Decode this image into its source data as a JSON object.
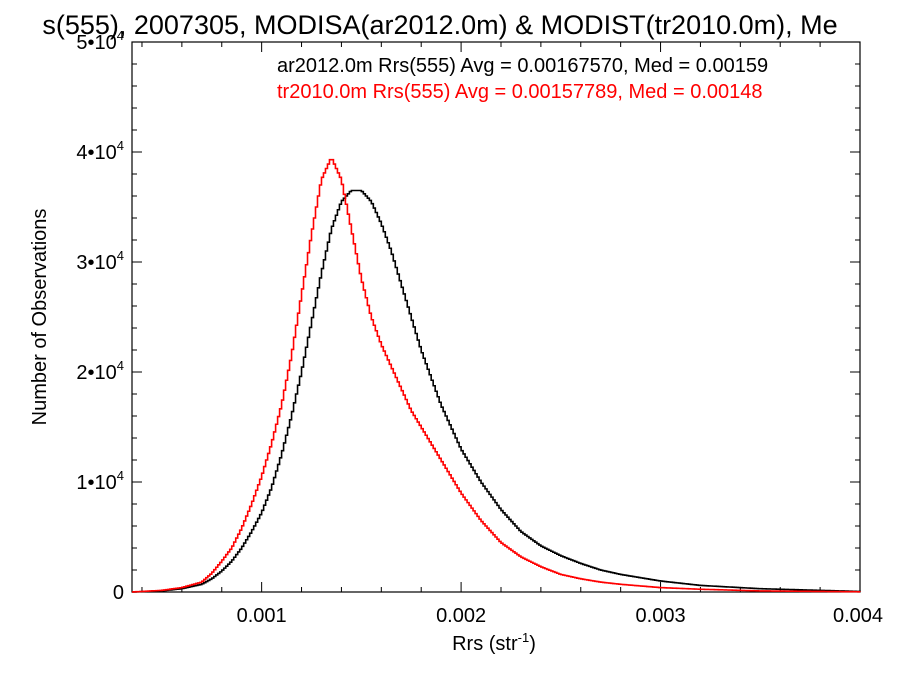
{
  "chart_data": {
    "type": "line",
    "title": "s(555), 2007305, MODISA(ar2012.0m) & MODIST(tr2010.0m), Me",
    "xlabel": "Rrs (str",
    "xlabel_sup": "-1",
    "xlabel_close": ")",
    "ylabel": "Number of Observations",
    "xlim": [
      0.00035,
      0.004
    ],
    "ylim": [
      0,
      50000
    ],
    "x_ticks": [
      {
        "value": 0.001,
        "label": "0.001"
      },
      {
        "value": 0.002,
        "label": "0.002"
      },
      {
        "value": 0.003,
        "label": "0.003"
      },
      {
        "value": 0.004,
        "label": "0.004"
      }
    ],
    "y_ticks": [
      {
        "value": 0,
        "base": "0",
        "exp": ""
      },
      {
        "value": 10000,
        "base": "1•10",
        "exp": "4"
      },
      {
        "value": 20000,
        "base": "2•10",
        "exp": "4"
      },
      {
        "value": 30000,
        "base": "3•10",
        "exp": "4"
      },
      {
        "value": 40000,
        "base": "4•10",
        "exp": "4"
      },
      {
        "value": 50000,
        "base": "5•10",
        "exp": "4"
      }
    ],
    "grid": false,
    "legend_position": "top-right",
    "series": [
      {
        "name": "ar2012.0m Rrs(555) Avg = 0.00167570, Med = 0.00159",
        "color": "#000000",
        "x": [
          0.00035,
          0.0005,
          0.0006,
          0.0007,
          0.00075,
          0.0008,
          0.00085,
          0.0009,
          0.00095,
          0.001,
          0.00105,
          0.0011,
          0.00115,
          0.0012,
          0.00125,
          0.0013,
          0.00135,
          0.0014,
          0.00145,
          0.0015,
          0.00155,
          0.0016,
          0.00165,
          0.0017,
          0.00175,
          0.0018,
          0.0019,
          0.002,
          0.0021,
          0.0022,
          0.0023,
          0.0024,
          0.0025,
          0.0026,
          0.0027,
          0.0028,
          0.003,
          0.0032,
          0.0035,
          0.0038,
          0.004
        ],
        "y": [
          0,
          100,
          300,
          700,
          1200,
          1900,
          2800,
          4000,
          5500,
          7200,
          9500,
          12500,
          16000,
          20000,
          24500,
          29000,
          33000,
          35500,
          36500,
          36500,
          35500,
          33500,
          31000,
          28000,
          25000,
          22000,
          17000,
          13000,
          10000,
          7500,
          5500,
          4200,
          3300,
          2600,
          2000,
          1600,
          1000,
          600,
          300,
          150,
          50
        ]
      },
      {
        "name": "tr2010.0m Rrs(555) Avg = 0.00157789, Med = 0.00148",
        "color": "#ff0000",
        "x": [
          0.00035,
          0.0005,
          0.0006,
          0.0007,
          0.00075,
          0.0008,
          0.00085,
          0.0009,
          0.00095,
          0.001,
          0.00105,
          0.0011,
          0.00115,
          0.0012,
          0.00125,
          0.0013,
          0.00135,
          0.0014,
          0.00145,
          0.0015,
          0.00155,
          0.0016,
          0.00165,
          0.0017,
          0.00175,
          0.0018,
          0.0019,
          0.002,
          0.0021,
          0.0022,
          0.0023,
          0.0024,
          0.0025,
          0.0026,
          0.0027,
          0.0028,
          0.003,
          0.0032,
          0.0035,
          0.0038,
          0.004
        ],
        "y": [
          0,
          150,
          400,
          900,
          1700,
          2800,
          4000,
          5800,
          8000,
          10500,
          13500,
          17000,
          21500,
          27000,
          32500,
          37500,
          39500,
          37500,
          33000,
          28500,
          25000,
          22500,
          20500,
          18500,
          16500,
          15000,
          12000,
          9000,
          6500,
          4500,
          3200,
          2300,
          1600,
          1200,
          900,
          700,
          400,
          250,
          100,
          50,
          20
        ]
      }
    ]
  }
}
